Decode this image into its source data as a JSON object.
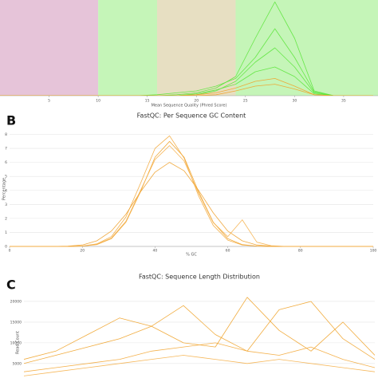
{
  "chart_data": [
    {
      "type": "line",
      "x_label": "Mean Sequence Quality (Phred Score)",
      "xlim": [
        0,
        38.5
      ],
      "xticks": [
        5,
        10,
        15,
        20,
        25,
        30,
        35
      ],
      "ylim": [
        0,
        100
      ],
      "grid": false,
      "bands": [
        {
          "from": 0,
          "to": 10,
          "color": "#e6c4d9"
        },
        {
          "from": 10,
          "to": 16,
          "color": "#c5f5b8"
        },
        {
          "from": 16,
          "to": 24,
          "color": "#e7dfc2"
        },
        {
          "from": 24,
          "to": 38.5,
          "color": "#c5f5b8"
        }
      ],
      "x": [
        0,
        2,
        4,
        6,
        8,
        10,
        12,
        14,
        16,
        18,
        20,
        22,
        24,
        26,
        28,
        30,
        32,
        34,
        36,
        38
      ],
      "series": [
        {
          "color": "#5ce63c",
          "values": [
            0,
            0,
            0,
            0,
            0,
            0,
            0,
            0,
            0,
            1,
            3,
            8,
            20,
            60,
            98,
            60,
            5,
            0,
            0,
            0
          ]
        },
        {
          "color": "#5ce63c",
          "values": [
            0,
            0,
            0,
            0,
            0,
            0,
            0,
            0,
            0,
            0,
            1,
            5,
            15,
            35,
            50,
            30,
            3,
            0,
            0,
            0
          ]
        },
        {
          "color": "#5ce63c",
          "values": [
            0,
            0,
            0,
            0,
            0,
            0,
            0,
            0,
            0,
            0,
            2,
            6,
            12,
            25,
            30,
            20,
            2,
            0,
            0,
            0
          ]
        },
        {
          "color": "#5ce63c",
          "values": [
            0,
            0,
            0,
            0,
            0,
            0,
            0,
            0,
            1,
            3,
            5,
            10,
            18,
            40,
            70,
            40,
            4,
            0,
            0,
            0
          ]
        },
        {
          "color": "#f0a32a",
          "values": [
            0,
            0,
            0,
            0,
            0,
            0,
            0,
            0,
            0,
            0,
            1,
            3,
            8,
            15,
            18,
            10,
            1,
            0,
            0,
            0
          ]
        },
        {
          "color": "#f0a32a",
          "values": [
            0,
            0,
            0,
            0,
            0,
            0,
            0,
            0,
            0,
            0,
            0,
            1,
            5,
            10,
            12,
            7,
            1,
            0,
            0,
            0
          ]
        }
      ]
    },
    {
      "type": "line",
      "panel_label": "B",
      "title": "FastQC: Per Sequence GC Content",
      "x_label": "% GC",
      "y_label": "Percentage",
      "xlim": [
        0,
        100
      ],
      "xticks": [
        0,
        20,
        40,
        60,
        80,
        100
      ],
      "ylim": [
        0,
        8.2
      ],
      "yticks": [
        0,
        1,
        2,
        3,
        4,
        5,
        6,
        7,
        8
      ],
      "grid": true,
      "x": [
        0,
        4,
        8,
        12,
        16,
        20,
        24,
        28,
        32,
        36,
        40,
        44,
        48,
        52,
        56,
        60,
        64,
        68,
        72,
        76,
        80,
        84,
        88,
        92,
        96,
        100
      ],
      "series": [
        {
          "color": "#f0a32a",
          "values": [
            0,
            0,
            0,
            0,
            0,
            0.02,
            0.13,
            0.55,
            1.73,
            3.9,
            6.37,
            7.5,
            6.37,
            3.9,
            1.73,
            0.55,
            0.13,
            0.02,
            0,
            0,
            0,
            0,
            0,
            0,
            0,
            0
          ]
        },
        {
          "color": "#f3a93a",
          "values": [
            0,
            0,
            0,
            0,
            0,
            0.03,
            0.18,
            0.7,
            2.1,
            4.5,
            7.0,
            7.9,
            6.3,
            3.6,
            1.5,
            0.45,
            0.1,
            0.02,
            0,
            0,
            0,
            0,
            0,
            0,
            0,
            0
          ]
        },
        {
          "color": "#eea02a",
          "values": [
            0,
            0,
            0,
            0,
            0.02,
            0.1,
            0.4,
            1.1,
            2.3,
            3.9,
            5.3,
            6.0,
            5.4,
            4.0,
            2.4,
            1.1,
            0.4,
            0.1,
            0.02,
            0,
            0,
            0,
            0,
            0,
            0,
            0
          ]
        },
        {
          "color": "#f5b04a",
          "values": [
            0,
            0,
            0,
            0,
            0,
            0.02,
            0.15,
            0.6,
            1.8,
            4.0,
            6.2,
            7.2,
            6.1,
            3.8,
            1.7,
            0.7,
            1.9,
            0.3,
            0.05,
            0,
            0,
            0,
            0,
            0,
            0,
            0
          ]
        }
      ]
    },
    {
      "type": "line",
      "panel_label": "C",
      "title": "FastQC: Sequence Length Distribution",
      "y_label": "Read Count",
      "ylim": [
        1500,
        22500
      ],
      "yticks": [
        5000,
        10000,
        15000,
        20000
      ],
      "grid": true,
      "series": [
        {
          "color": "#f0a32a",
          "values": [
            6000,
            8000,
            12000,
            16000,
            14000,
            10000,
            9000,
            21000,
            13000,
            8000,
            15000,
            7000
          ]
        },
        {
          "color": "#f0a32a",
          "values": [
            5000,
            7000,
            9000,
            11000,
            14000,
            19000,
            12000,
            8000,
            18000,
            20000,
            11000,
            6000
          ]
        },
        {
          "color": "#f3a93a",
          "values": [
            3000,
            4000,
            5000,
            6000,
            8000,
            9000,
            10000,
            8000,
            7000,
            9000,
            6000,
            4000
          ]
        },
        {
          "color": "#f5b04a",
          "values": [
            2000,
            3000,
            4000,
            5000,
            6000,
            7000,
            6000,
            5000,
            6000,
            5000,
            4000,
            3000
          ]
        }
      ]
    }
  ]
}
